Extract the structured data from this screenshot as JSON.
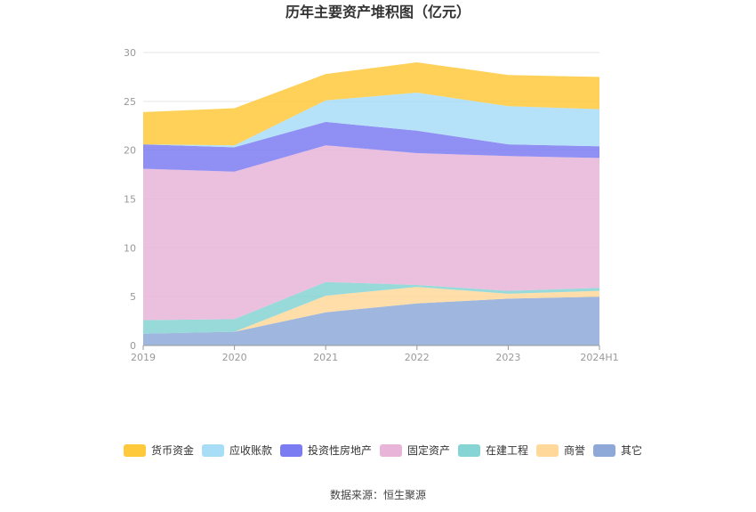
{
  "chart_data": {
    "type": "area",
    "stacked": true,
    "title": "历年主要资产堆积图（亿元）",
    "categories": [
      "2019",
      "2020",
      "2021",
      "2022",
      "2023",
      "2024H1"
    ],
    "ylim": [
      0,
      30
    ],
    "yticks": [
      "0",
      "5",
      "10",
      "15",
      "20",
      "25",
      "30"
    ],
    "grid": true,
    "legend_position": "bottom",
    "series": [
      {
        "name": "货币资金",
        "color": "#FFC93C",
        "values": [
          3.3,
          3.8,
          2.7,
          3.1,
          3.2,
          3.3
        ]
      },
      {
        "name": "应收账款",
        "color": "#A8DDF7",
        "values": [
          0.0,
          0.2,
          2.2,
          3.9,
          3.9,
          3.8
        ]
      },
      {
        "name": "投资性房地产",
        "color": "#7C7CF2",
        "values": [
          2.5,
          2.5,
          2.4,
          2.3,
          1.2,
          1.2
        ]
      },
      {
        "name": "固定资产",
        "color": "#E8B4D8",
        "values": [
          15.5,
          15.1,
          14.0,
          13.5,
          13.8,
          13.3
        ]
      },
      {
        "name": "在建工程",
        "color": "#86D4D4",
        "values": [
          1.4,
          1.3,
          1.4,
          0.2,
          0.3,
          0.3
        ]
      },
      {
        "name": "商誉",
        "color": "#FFD89A",
        "values": [
          0.0,
          0.0,
          1.7,
          1.7,
          0.5,
          0.6
        ]
      },
      {
        "name": "其它",
        "color": "#8EA9D8",
        "values": [
          1.2,
          1.4,
          3.4,
          4.3,
          4.8,
          5.0
        ]
      }
    ],
    "source": "数据来源：恒生聚源"
  }
}
